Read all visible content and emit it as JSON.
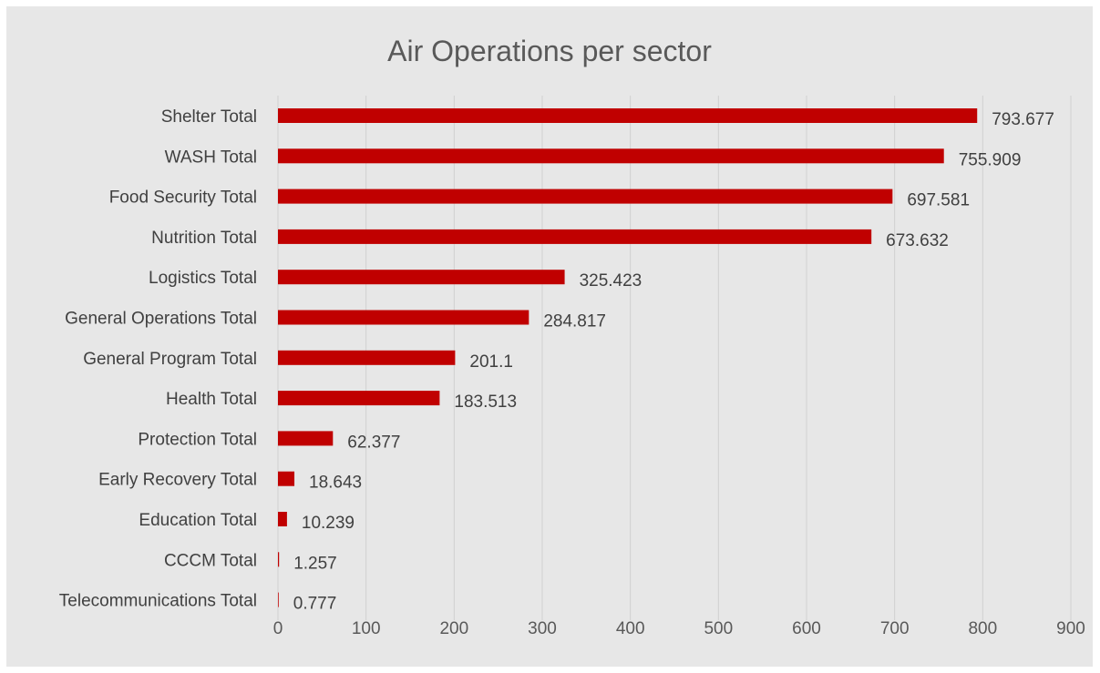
{
  "chart_data": {
    "type": "bar",
    "orientation": "horizontal",
    "title": "Air Operations per sector",
    "xlabel": "",
    "ylabel": "",
    "categories": [
      "Shelter Total",
      "WASH Total",
      "Food Security Total",
      "Nutrition Total",
      "Logistics Total",
      "General Operations Total",
      "General Program Total",
      "Health Total",
      "Protection Total",
      "Early Recovery Total",
      "Education Total",
      "CCCM Total",
      "Telecommunications Total"
    ],
    "values": [
      793.677,
      755.909,
      697.581,
      673.632,
      325.423,
      284.817,
      201.1,
      183.513,
      62.377,
      18.643,
      10.239,
      1.257,
      0.777
    ],
    "value_labels": [
      "793.677",
      "755.909",
      "697.581",
      "673.632",
      "325.423",
      "284.817",
      "201.1",
      "183.513",
      "62.377",
      "18.643",
      "10.239",
      "1.257",
      "0.777"
    ],
    "xlim": [
      0,
      900
    ],
    "xticks": [
      0,
      100,
      200,
      300,
      400,
      500,
      600,
      700,
      800,
      900
    ],
    "xtick_labels": [
      "0",
      "100",
      "200",
      "300",
      "400",
      "500",
      "600",
      "700",
      "800",
      "900"
    ],
    "grid": "vertical",
    "legend": "none",
    "colors": {
      "bar": "#c00000",
      "background": "#e7e7e7",
      "grid": "#d0d0d0"
    }
  }
}
